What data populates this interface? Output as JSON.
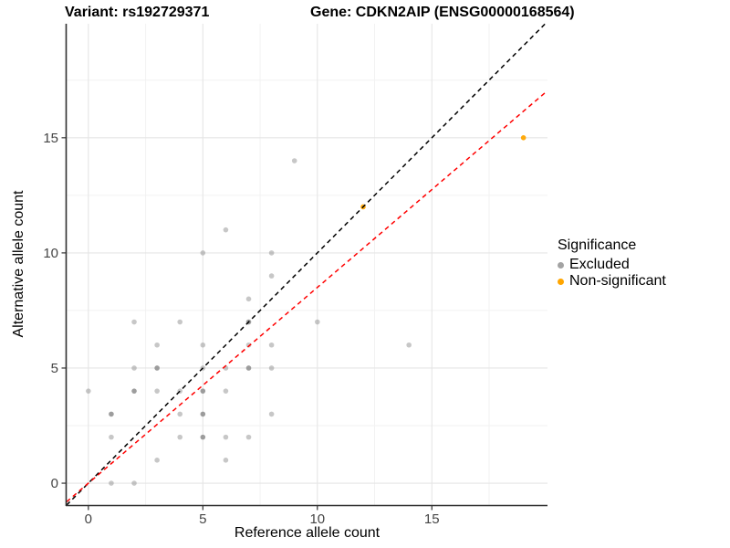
{
  "titles": {
    "variant": "Variant: rs192729371",
    "gene": "Gene: CDKN2AIP (ENSG00000168564)"
  },
  "legend": {
    "title": "Significance",
    "items": [
      {
        "label": "Excluded",
        "color": "#a3a3a3"
      },
      {
        "label": "Non-significant",
        "color": "#FFA500"
      }
    ]
  },
  "chart_data": {
    "type": "scatter",
    "title": "Variant: rs192729371 — Gene: CDKN2AIP (ENSG00000168564)",
    "xlabel": "Reference allele count",
    "ylabel": "Alternative allele count",
    "xlim": [
      -0.95,
      20.05
    ],
    "ylim": [
      -0.95,
      19.95
    ],
    "x_ticks": [
      0,
      5,
      10,
      15
    ],
    "y_ticks": [
      0,
      5,
      10,
      15
    ],
    "minor_grid_step": 2.5,
    "grid": "major+minor",
    "legend_position": "right",
    "series": [
      {
        "name": "Excluded",
        "color": "#8f8f8f",
        "opacity": 0.5,
        "dark_opacity": 0.88,
        "points": [
          [
            0,
            4
          ],
          [
            1,
            0
          ],
          [
            1,
            2
          ],
          [
            1,
            3,
            1
          ],
          [
            2,
            0
          ],
          [
            2,
            4,
            1
          ],
          [
            2,
            5
          ],
          [
            2,
            7
          ],
          [
            3,
            1
          ],
          [
            3,
            4
          ],
          [
            3,
            5,
            1
          ],
          [
            3,
            6
          ],
          [
            4,
            2
          ],
          [
            4,
            3
          ],
          [
            4,
            4
          ],
          [
            4,
            7
          ],
          [
            5,
            2,
            1
          ],
          [
            5,
            3,
            1
          ],
          [
            5,
            4,
            1
          ],
          [
            5,
            5
          ],
          [
            5,
            6
          ],
          [
            5,
            10
          ],
          [
            6,
            1
          ],
          [
            6,
            2
          ],
          [
            6,
            4
          ],
          [
            6,
            5
          ],
          [
            6,
            11
          ],
          [
            7,
            2
          ],
          [
            7,
            5,
            1
          ],
          [
            7,
            6
          ],
          [
            7,
            7,
            1
          ],
          [
            7,
            8
          ],
          [
            8,
            3
          ],
          [
            8,
            5
          ],
          [
            8,
            6
          ],
          [
            8,
            9
          ],
          [
            8,
            10
          ],
          [
            9,
            14
          ],
          [
            10,
            7
          ],
          [
            14,
            6
          ]
        ]
      },
      {
        "name": "Non-significant",
        "color": "#FFA500",
        "opacity": 0.95,
        "dark_opacity": 0.95,
        "points": [
          [
            12,
            12
          ],
          [
            19,
            15
          ]
        ]
      }
    ],
    "lines": [
      {
        "name": "identity",
        "slope": 1,
        "intercept": 0,
        "color": "#000000",
        "dash": "dashed"
      },
      {
        "name": "expected-ratio",
        "slope": 0.85,
        "intercept": 0,
        "color": "#FF0000",
        "dash": "dashed"
      }
    ]
  }
}
